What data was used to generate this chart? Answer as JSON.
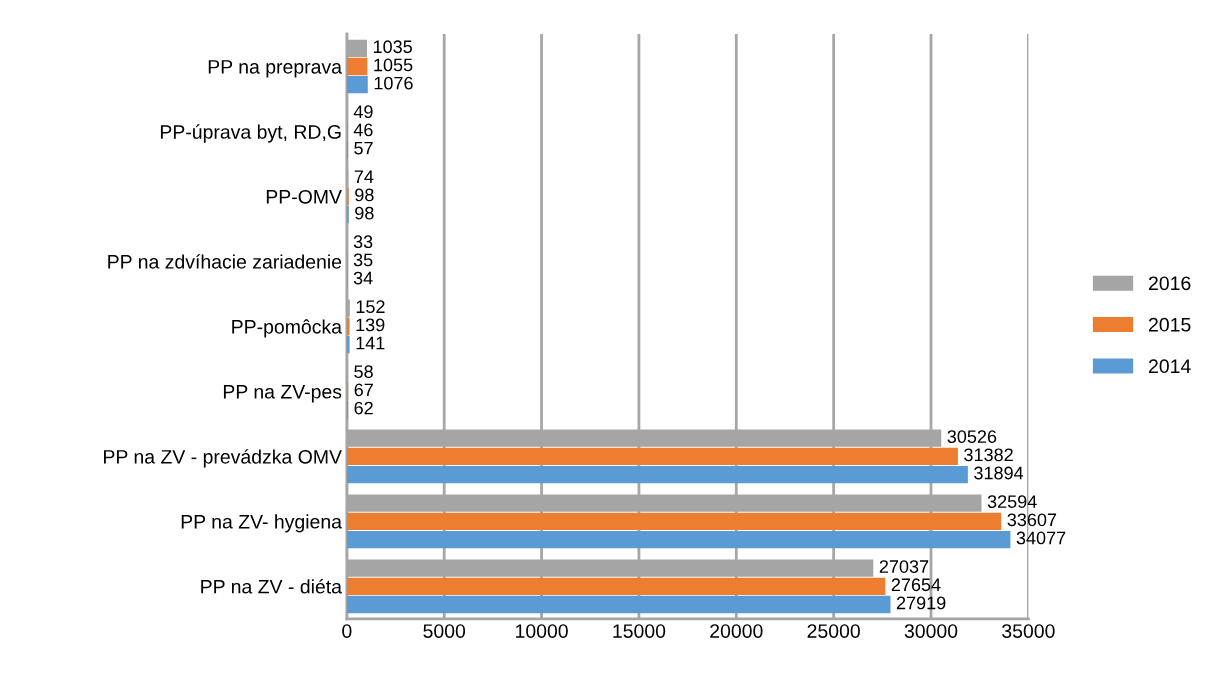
{
  "chart_data": {
    "type": "bar",
    "orientation": "horizontal",
    "categories": [
      "PP na preprava",
      "PP-úprava byt, RD,G",
      "PP-OMV",
      "PP na zdvíhacie zariadenie",
      "PP-pomôcka",
      "PP na ZV-pes",
      "PP na ZV - prevádzka OMV",
      "PP na ZV- hygiena",
      "PP na ZV - diéta"
    ],
    "series": [
      {
        "name": "2014",
        "color": "#5b9bd5",
        "values": [
          1076,
          57,
          98,
          34,
          141,
          62,
          31894,
          34077,
          27919
        ]
      },
      {
        "name": "2015",
        "color": "#ed7d31",
        "values": [
          1055,
          46,
          98,
          35,
          139,
          67,
          31382,
          33607,
          27654
        ]
      },
      {
        "name": "2016",
        "color": "#a5a5a5",
        "values": [
          1035,
          49,
          74,
          33,
          152,
          58,
          30526,
          32594,
          27037
        ]
      }
    ],
    "xlim": [
      0,
      35000
    ],
    "xticks": [
      0,
      5000,
      10000,
      15000,
      20000,
      25000,
      30000,
      35000
    ],
    "grid": "x",
    "legend": "right",
    "data_labels": true
  }
}
